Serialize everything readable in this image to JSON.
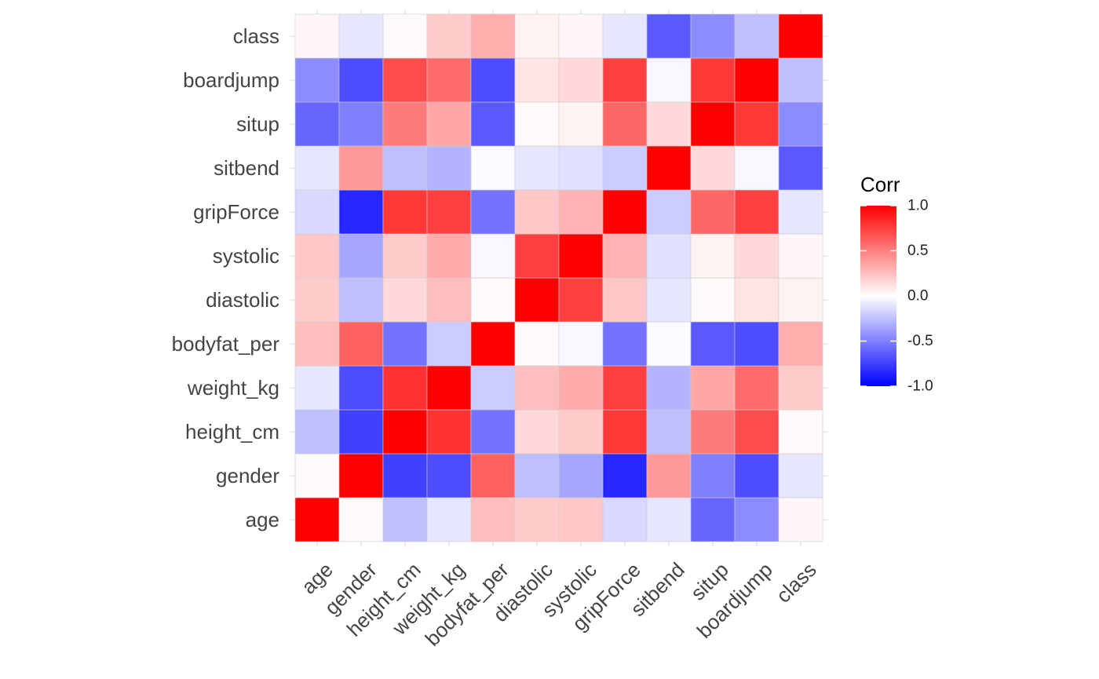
{
  "chart_data": {
    "type": "heatmap",
    "title": "",
    "xlabel": "",
    "ylabel": "",
    "variables": [
      "age",
      "gender",
      "height_cm",
      "weight_kg",
      "bodyfat_per",
      "diastolic",
      "systolic",
      "gripForce",
      "sitbend",
      "situp",
      "boardjump",
      "class"
    ],
    "matrix": [
      [
        1.0,
        0.02,
        -0.25,
        -0.1,
        0.25,
        0.2,
        0.22,
        -0.15,
        -0.1,
        -0.6,
        -0.45,
        0.03
      ],
      [
        0.02,
        1.0,
        -0.75,
        -0.7,
        0.62,
        -0.25,
        -0.35,
        -0.85,
        0.4,
        -0.5,
        -0.7,
        -0.1
      ],
      [
        -0.25,
        -0.75,
        1.0,
        0.8,
        -0.55,
        0.15,
        0.2,
        0.78,
        -0.25,
        0.52,
        0.7,
        0.02
      ],
      [
        -0.1,
        -0.7,
        0.8,
        1.0,
        -0.2,
        0.25,
        0.33,
        0.75,
        -0.3,
        0.35,
        0.58,
        0.2
      ],
      [
        0.25,
        0.62,
        -0.55,
        -0.2,
        1.0,
        0.02,
        -0.03,
        -0.55,
        -0.02,
        -0.65,
        -0.7,
        0.32
      ],
      [
        0.2,
        -0.25,
        0.15,
        0.25,
        0.02,
        1.0,
        0.75,
        0.22,
        -0.1,
        0.02,
        0.1,
        0.05
      ],
      [
        0.22,
        -0.35,
        0.2,
        0.33,
        -0.03,
        0.75,
        1.0,
        0.3,
        -0.12,
        0.05,
        0.15,
        0.03
      ],
      [
        -0.15,
        -0.85,
        0.78,
        0.75,
        -0.55,
        0.22,
        0.3,
        1.0,
        -0.2,
        0.6,
        0.75,
        -0.1
      ],
      [
        -0.1,
        0.4,
        -0.25,
        -0.3,
        -0.02,
        -0.1,
        -0.12,
        -0.2,
        1.0,
        0.15,
        -0.03,
        -0.65
      ],
      [
        -0.6,
        -0.5,
        0.52,
        0.35,
        -0.65,
        0.02,
        0.05,
        0.6,
        0.15,
        1.0,
        0.78,
        -0.45
      ],
      [
        -0.45,
        -0.7,
        0.7,
        0.58,
        -0.7,
        0.1,
        0.15,
        0.75,
        -0.03,
        0.78,
        1.0,
        -0.25
      ],
      [
        0.03,
        -0.1,
        0.02,
        0.2,
        0.32,
        0.05,
        0.03,
        -0.1,
        -0.65,
        -0.45,
        -0.25,
        1.0
      ]
    ],
    "value_range": [
      -1,
      1
    ],
    "legend": {
      "title": "Corr",
      "ticks": [
        1.0,
        0.5,
        0.0,
        -0.5,
        -1.0
      ],
      "tick_labels": [
        "1.0",
        "0.5",
        "0.0",
        "-0.5",
        "-1.0"
      ],
      "placement": "right"
    },
    "colors": {
      "low": "#0000ff",
      "mid": "#ffffff",
      "high": "#ff0000",
      "grid": "#ebebeb",
      "tile_border": "#cccccc"
    },
    "grid": true
  }
}
